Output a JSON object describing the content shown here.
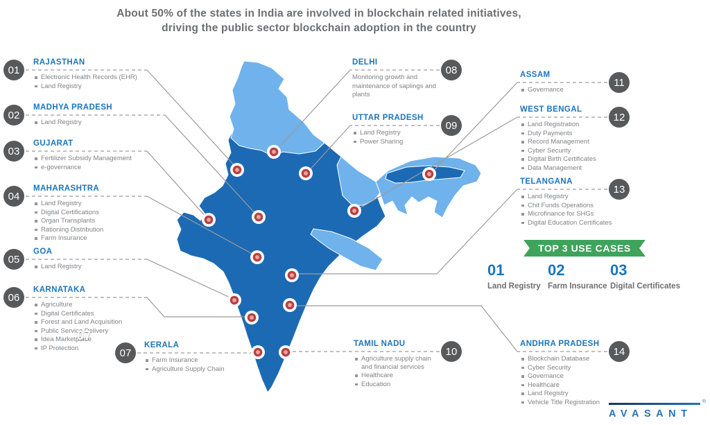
{
  "title": {
    "line1": "About 50% of the states in India are involved in blockchain related initiatives,",
    "line2": "driving the public sector blockchain adoption in the country"
  },
  "states": [
    {
      "num": "01",
      "name": "RAJASTHAN",
      "items": [
        "Electronic Health Records (EHR)",
        "Land Registry"
      ]
    },
    {
      "num": "02",
      "name": "MADHYA PRADESH",
      "items": [
        "Land Registry"
      ]
    },
    {
      "num": "03",
      "name": "GUJARAT",
      "items": [
        "Fertilizer Subsidy Management",
        "e-governance"
      ]
    },
    {
      "num": "04",
      "name": "MAHARASHTRA",
      "items": [
        "Land Registry",
        "Digital Certifications",
        "Organ Transplants",
        "Rationing Distribution",
        "Farm Insurance"
      ]
    },
    {
      "num": "05",
      "name": "GOA",
      "items": [
        "Land Registry"
      ]
    },
    {
      "num": "06",
      "name": "KARNATAKA",
      "items": [
        "Agriculture",
        "Digital Certificates",
        "Forest and Land Acquisition",
        "Public Service Delivery",
        "Idea Marketplace",
        "IP Protection"
      ]
    },
    {
      "num": "07",
      "name": "KERALA",
      "items": [
        "Farm Insurance",
        "Agriculture Supply Chain"
      ]
    },
    {
      "num": "08",
      "name": "DELHI",
      "items": [],
      "description": "Monitoring growth and maintenance of saplings and plants"
    },
    {
      "num": "09",
      "name": "UTTAR PRADESH",
      "items": [
        "Land Registry",
        "Power Sharing"
      ]
    },
    {
      "num": "10",
      "name": "TAMIL NADU",
      "items": [
        "Agriculture supply chain and financial services",
        "Healthcare",
        "Education"
      ]
    },
    {
      "num": "11",
      "name": "ASSAM",
      "items": [
        "Governance"
      ]
    },
    {
      "num": "12",
      "name": "WEST BENGAL",
      "items": [
        "Land Registration",
        "Duty Payments",
        "Record Management",
        "Cyber Security",
        "Digital Birth Certificates",
        "Data Management"
      ]
    },
    {
      "num": "13",
      "name": "TELANGANA",
      "items": [
        "Land Registry",
        "Chit Funds Operations",
        "Microfinance for SHGs",
        "Digital Education Certificates"
      ]
    },
    {
      "num": "14",
      "name": "ANDHRA PRADESH",
      "items": [
        "Blockchain Database",
        "Cyber Security",
        "Governance",
        "Healthcare",
        "Land Registry",
        "Vehicle Title Registration"
      ]
    }
  ],
  "use_cases": {
    "banner": "TOP 3 USE CASES",
    "items": [
      {
        "num": "01",
        "label": "Land Registry"
      },
      {
        "num": "02",
        "label": "Farm Insurance"
      },
      {
        "num": "03",
        "label": "Digital Certificates"
      }
    ]
  },
  "artifact": {
    "stray_number": "07"
  },
  "brand": {
    "name": "AVASANT",
    "registered": "®"
  },
  "colors": {
    "state_active": "#1C6AB3",
    "state_inactive": "#6FB2EC",
    "label_blue": "#1B75BC",
    "ribbon_green": "#3EA35B",
    "badge_gray": "#58595B",
    "marker_red": "#B84040",
    "text_gray": "#808285",
    "title_gray": "#6D6E71"
  }
}
